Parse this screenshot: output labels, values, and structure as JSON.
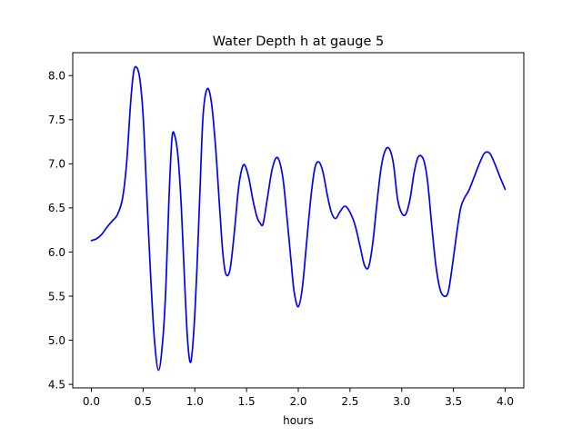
{
  "chart_data": {
    "type": "line",
    "title": "Water Depth h at gauge 5",
    "xlabel": "hours",
    "ylabel": "",
    "xlim": [
      -0.18,
      4.18
    ],
    "ylim": [
      4.46,
      8.26
    ],
    "xticks": [
      0.0,
      0.5,
      1.0,
      1.5,
      2.0,
      2.5,
      3.0,
      3.5,
      4.0
    ],
    "yticks": [
      4.5,
      5.0,
      5.5,
      6.0,
      6.5,
      7.0,
      7.5,
      8.0
    ],
    "xtick_labels": [
      "0.0",
      "0.5",
      "1.0",
      "1.5",
      "2.0",
      "2.5",
      "3.0",
      "3.5",
      "4.0"
    ],
    "ytick_labels": [
      "4.5",
      "5.0",
      "5.5",
      "6.0",
      "6.5",
      "7.0",
      "7.5",
      "8.0"
    ],
    "grid": false,
    "legend": "none",
    "series": [
      {
        "color": "#0000ff",
        "x": [
          0.0,
          0.05,
          0.1,
          0.15,
          0.2,
          0.25,
          0.3,
          0.34,
          0.38,
          0.41,
          0.44,
          0.47,
          0.5,
          0.53,
          0.57,
          0.61,
          0.65,
          0.69,
          0.72,
          0.75,
          0.78,
          0.81,
          0.84,
          0.87,
          0.9,
          0.93,
          0.96,
          0.99,
          1.02,
          1.05,
          1.08,
          1.12,
          1.16,
          1.2,
          1.24,
          1.27,
          1.3,
          1.34,
          1.38,
          1.42,
          1.45,
          1.48,
          1.52,
          1.56,
          1.6,
          1.63,
          1.66,
          1.7,
          1.75,
          1.8,
          1.85,
          1.89,
          1.93,
          1.96,
          2.0,
          2.04,
          2.08,
          2.12,
          2.16,
          2.2,
          2.24,
          2.28,
          2.32,
          2.36,
          2.4,
          2.45,
          2.5,
          2.55,
          2.6,
          2.64,
          2.68,
          2.72,
          2.76,
          2.8,
          2.84,
          2.88,
          2.92,
          2.96,
          3.0,
          3.04,
          3.08,
          3.12,
          3.16,
          3.21,
          3.25,
          3.29,
          3.33,
          3.37,
          3.41,
          3.45,
          3.49,
          3.53,
          3.57,
          3.61,
          3.65,
          3.7,
          3.75,
          3.8,
          3.85,
          3.9,
          3.95,
          4.0
        ],
        "y": [
          6.13,
          6.15,
          6.2,
          6.28,
          6.35,
          6.42,
          6.6,
          7.0,
          7.7,
          8.05,
          8.09,
          7.95,
          7.55,
          6.8,
          5.8,
          5.0,
          4.66,
          5.0,
          5.6,
          6.6,
          7.3,
          7.3,
          7.05,
          6.5,
          5.7,
          5.0,
          4.75,
          5.1,
          5.8,
          6.7,
          7.55,
          7.85,
          7.7,
          7.2,
          6.5,
          6.0,
          5.75,
          5.8,
          6.2,
          6.7,
          6.92,
          6.99,
          6.85,
          6.6,
          6.4,
          6.33,
          6.32,
          6.6,
          6.95,
          7.07,
          6.85,
          6.4,
          5.9,
          5.55,
          5.38,
          5.6,
          6.1,
          6.6,
          6.95,
          7.02,
          6.9,
          6.65,
          6.45,
          6.38,
          6.45,
          6.52,
          6.45,
          6.3,
          6.05,
          5.85,
          5.83,
          6.1,
          6.55,
          6.95,
          7.15,
          7.17,
          7.0,
          6.6,
          6.44,
          6.43,
          6.6,
          6.9,
          7.08,
          7.05,
          6.8,
          6.3,
          5.85,
          5.58,
          5.5,
          5.55,
          5.85,
          6.2,
          6.5,
          6.62,
          6.7,
          6.85,
          7.0,
          7.12,
          7.12,
          7.0,
          6.85,
          6.71
        ]
      }
    ]
  }
}
